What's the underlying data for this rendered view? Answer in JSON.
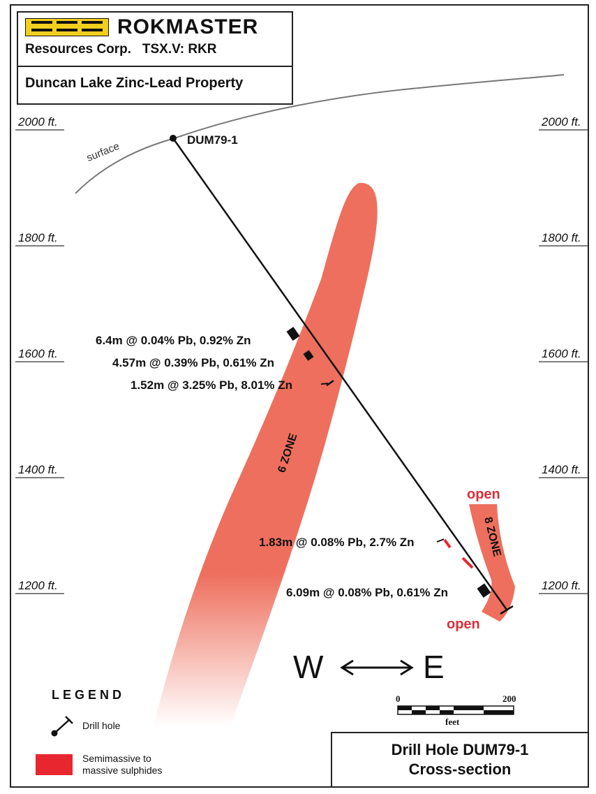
{
  "header": {
    "company": "ROKMASTER",
    "subtitle": "Resources Corp.   TSX.V: RKR",
    "property": "Duncan Lake Zinc-Lead Property"
  },
  "elevations": {
    "e2000": "2000 ft.",
    "e1800": "1800 ft.",
    "e1600": "1600 ft.",
    "e1400": "1400 ft.",
    "e1200": "1200 ft."
  },
  "surface_label": "surface",
  "drill_hole_name": "DUM79-1",
  "intercepts": [
    "6.4m @ 0.04% Pb, 0.92% Zn",
    "4.57m @ 0.39% Pb, 0.61% Zn",
    "1.52m @ 3.25% Pb, 8.01% Zn",
    "1.83m @ 0.08% Pb, 2.7% Zn",
    "6.09m @ 0.08% Pb, 0.61% Zn"
  ],
  "zones": {
    "zone6": "6 ZONE",
    "zone8": "8 ZONE",
    "open_top": "open",
    "open_bottom": "open"
  },
  "compass": {
    "west": "W",
    "east": "E"
  },
  "scale": {
    "min": "0",
    "max": "200",
    "unit": "feet"
  },
  "legend": {
    "title": "LEGEND",
    "drill_hole": "Drill hole",
    "sulphides": "Semimassive to massive sulphides",
    "sulphide_color": "#e8262f"
  },
  "title_block": {
    "line1": "Drill Hole DUM79-1",
    "line2": "Cross-section"
  },
  "colors": {
    "zone_fill": "#ee6f5d",
    "open_text": "#d8303a",
    "logo_yellow": "#f2cf1d"
  }
}
